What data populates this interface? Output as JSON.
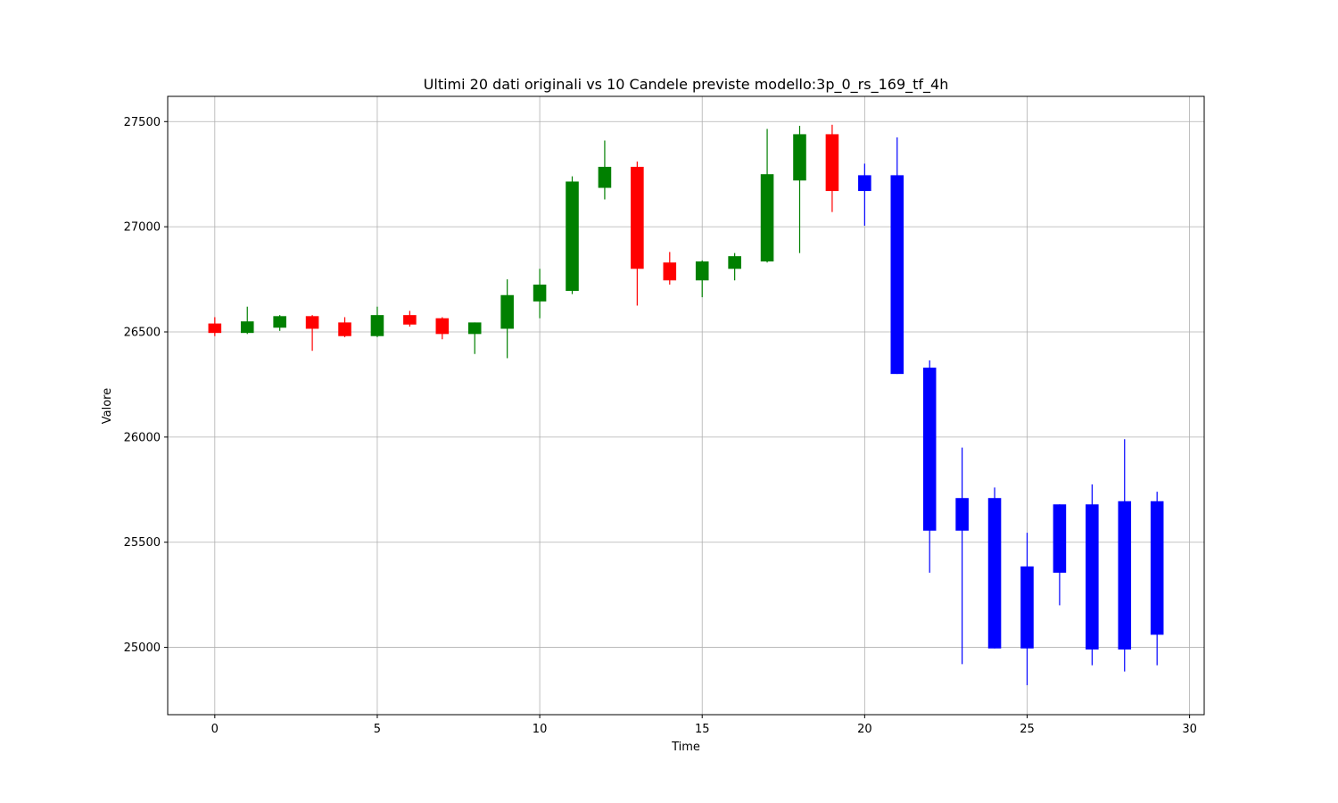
{
  "chart_data": {
    "type": "candlestick",
    "title": "Ultimi 20 dati originali vs 10 Candele previste modello:3p_0_rs_169_tf_4h",
    "xlabel": "Time",
    "ylabel": "Valore",
    "xlim": [
      -1.45,
      30.45
    ],
    "ylim": [
      24680,
      27620
    ],
    "xticks": [
      0,
      5,
      10,
      15,
      20,
      25,
      30
    ],
    "yticks": [
      25000,
      25500,
      26000,
      26500,
      27000,
      27500
    ],
    "grid": true,
    "colors": {
      "up": "#008000",
      "down": "#ff0000",
      "predicted": "#0000ff"
    },
    "candles": [
      {
        "t": 0,
        "open": 26540,
        "high": 26570,
        "low": 26480,
        "close": 26495,
        "kind": "original"
      },
      {
        "t": 1,
        "open": 26495,
        "high": 26620,
        "low": 26490,
        "close": 26550,
        "kind": "original"
      },
      {
        "t": 2,
        "open": 26520,
        "high": 26580,
        "low": 26505,
        "close": 26575,
        "kind": "original"
      },
      {
        "t": 3,
        "open": 26575,
        "high": 26580,
        "low": 26410,
        "close": 26515,
        "kind": "original"
      },
      {
        "t": 4,
        "open": 26545,
        "high": 26570,
        "low": 26475,
        "close": 26480,
        "kind": "original"
      },
      {
        "t": 5,
        "open": 26480,
        "high": 26620,
        "low": 26475,
        "close": 26580,
        "kind": "original"
      },
      {
        "t": 6,
        "open": 26580,
        "high": 26600,
        "low": 26525,
        "close": 26535,
        "kind": "original"
      },
      {
        "t": 7,
        "open": 26565,
        "high": 26570,
        "low": 26465,
        "close": 26490,
        "kind": "original"
      },
      {
        "t": 8,
        "open": 26490,
        "high": 26545,
        "low": 26395,
        "close": 26545,
        "kind": "original"
      },
      {
        "t": 9,
        "open": 26515,
        "high": 26750,
        "low": 26375,
        "close": 26675,
        "kind": "original"
      },
      {
        "t": 10,
        "open": 26645,
        "high": 26800,
        "low": 26565,
        "close": 26725,
        "kind": "original"
      },
      {
        "t": 11,
        "open": 26695,
        "high": 27240,
        "low": 26680,
        "close": 27215,
        "kind": "original"
      },
      {
        "t": 12,
        "open": 27185,
        "high": 27410,
        "low": 27130,
        "close": 27285,
        "kind": "original"
      },
      {
        "t": 13,
        "open": 27285,
        "high": 27310,
        "low": 26625,
        "close": 26800,
        "kind": "original"
      },
      {
        "t": 14,
        "open": 26830,
        "high": 26880,
        "low": 26725,
        "close": 26745,
        "kind": "original"
      },
      {
        "t": 15,
        "open": 26745,
        "high": 26840,
        "low": 26665,
        "close": 26835,
        "kind": "original"
      },
      {
        "t": 16,
        "open": 26800,
        "high": 26875,
        "low": 26745,
        "close": 26860,
        "kind": "original"
      },
      {
        "t": 17,
        "open": 26835,
        "high": 27465,
        "low": 26830,
        "close": 27250,
        "kind": "original"
      },
      {
        "t": 18,
        "open": 27220,
        "high": 27480,
        "low": 26875,
        "close": 27440,
        "kind": "original"
      },
      {
        "t": 19,
        "open": 27440,
        "high": 27485,
        "low": 27070,
        "close": 27170,
        "kind": "original"
      },
      {
        "t": 20,
        "open": 27245,
        "high": 27300,
        "low": 27005,
        "close": 27170,
        "kind": "predicted"
      },
      {
        "t": 21,
        "open": 27245,
        "high": 27425,
        "low": 26300,
        "close": 26300,
        "kind": "predicted"
      },
      {
        "t": 22,
        "open": 26330,
        "high": 26365,
        "low": 25355,
        "close": 25555,
        "kind": "predicted"
      },
      {
        "t": 23,
        "open": 25710,
        "high": 25950,
        "low": 24920,
        "close": 25555,
        "kind": "predicted"
      },
      {
        "t": 24,
        "open": 25710,
        "high": 25760,
        "low": 24995,
        "close": 24995,
        "kind": "predicted"
      },
      {
        "t": 25,
        "open": 25385,
        "high": 25545,
        "low": 24820,
        "close": 24995,
        "kind": "predicted"
      },
      {
        "t": 26,
        "open": 25680,
        "high": 25680,
        "low": 25200,
        "close": 25355,
        "kind": "predicted"
      },
      {
        "t": 27,
        "open": 25680,
        "high": 25775,
        "low": 24915,
        "close": 24990,
        "kind": "predicted"
      },
      {
        "t": 28,
        "open": 25695,
        "high": 25990,
        "low": 24885,
        "close": 24990,
        "kind": "predicted"
      },
      {
        "t": 29,
        "open": 25695,
        "high": 25740,
        "low": 24915,
        "close": 25060,
        "kind": "predicted"
      }
    ]
  }
}
